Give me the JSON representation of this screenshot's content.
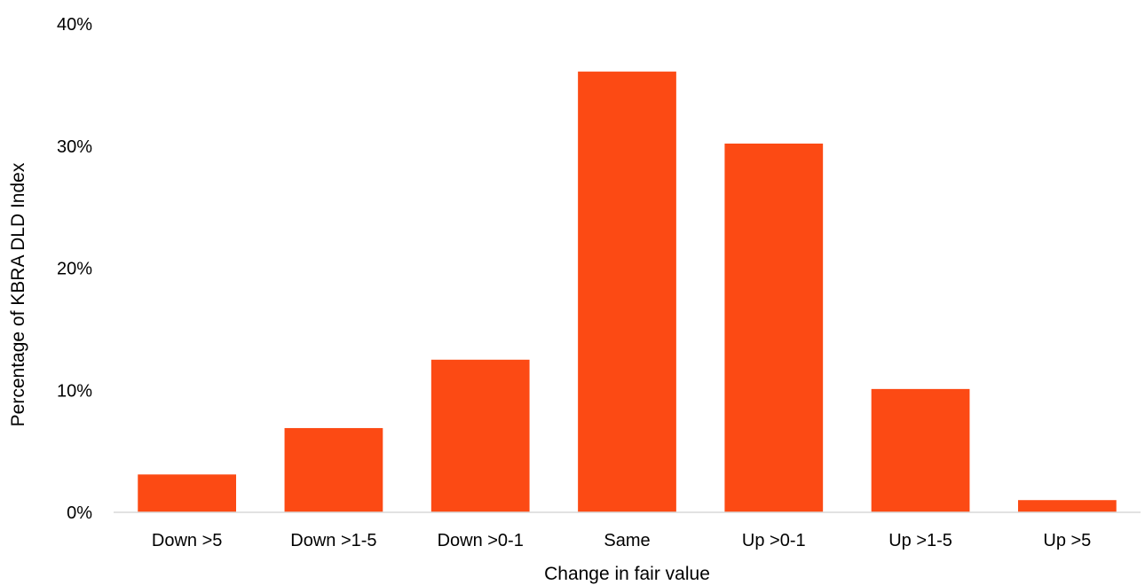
{
  "chart_data": {
    "type": "bar",
    "title": "",
    "xlabel": "Change in fair value",
    "ylabel": "Percentage of KBRA DLD Index",
    "categories": [
      "Down >5",
      "Down >1-5",
      "Down >0-1",
      "Same",
      "Up >0-1",
      "Up >1-5",
      "Up >5"
    ],
    "values": [
      3.1,
      6.9,
      12.5,
      36.1,
      30.2,
      10.1,
      1.0
    ],
    "ylim": [
      0,
      40
    ],
    "yticks": [
      0,
      10,
      20,
      30,
      40
    ],
    "ytick_labels": [
      "0%",
      "10%",
      "20%",
      "30%",
      "40%"
    ],
    "y_unit": "%",
    "grid": false,
    "legend": "none",
    "bar_color": "#FC4A14",
    "axis_color": "#D9D9D9"
  }
}
